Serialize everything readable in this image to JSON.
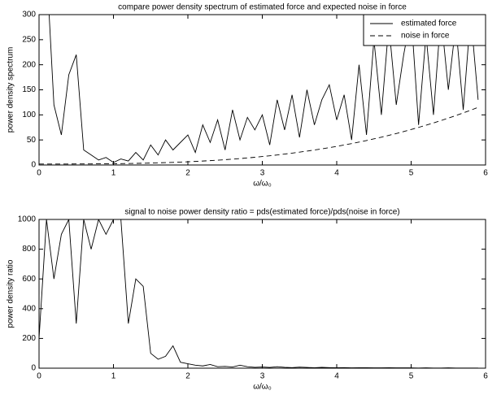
{
  "chart_data": [
    {
      "type": "line",
      "title": "compare power density spectrum of estimated force and expected noise in force",
      "xlabel": "ω/ω₀",
      "ylabel": "power density spectrum",
      "x": [
        0,
        0.1,
        0.2,
        0.3,
        0.4,
        0.5,
        0.6,
        0.7,
        0.8,
        0.9,
        1,
        1.1,
        1.2,
        1.3,
        1.4,
        1.5,
        1.6,
        1.7,
        1.8,
        1.9,
        2,
        2.1,
        2.2,
        2.3,
        2.4,
        2.5,
        2.6,
        2.7,
        2.8,
        2.9,
        3,
        3.1,
        3.2,
        3.3,
        3.4,
        3.5,
        3.6,
        3.7,
        3.8,
        3.9,
        4,
        4.1,
        4.2,
        4.3,
        4.4,
        4.5,
        4.6,
        4.7,
        4.8,
        4.9,
        5,
        5.1,
        5.2,
        5.3,
        5.4,
        5.5,
        5.6,
        5.7,
        5.8,
        5.9
      ],
      "series": [
        {
          "name": "estimated force",
          "color": "#000000",
          "dash": "solid",
          "values": [
            300,
            400,
            120,
            60,
            180,
            220,
            30,
            20,
            10,
            15,
            5,
            12,
            8,
            25,
            10,
            40,
            20,
            50,
            30,
            45,
            60,
            25,
            80,
            45,
            90,
            30,
            110,
            50,
            95,
            70,
            100,
            40,
            130,
            70,
            140,
            55,
            150,
            80,
            130,
            160,
            90,
            140,
            50,
            200,
            60,
            250,
            100,
            280,
            120,
            220,
            300,
            80,
            260,
            100,
            300,
            150,
            280,
            110,
            300,
            130
          ]
        },
        {
          "name": "noise in force",
          "color": "#000000",
          "dash": "dashed",
          "values": [
            2,
            2,
            2,
            2,
            2,
            2.1,
            2.1,
            2.2,
            2.3,
            2.4,
            2.6,
            2.7,
            3,
            3.2,
            3.5,
            3.9,
            4.3,
            4.7,
            5.2,
            5.8,
            6.4,
            7.1,
            7.9,
            8.7,
            9.6,
            10.6,
            11.7,
            12.8,
            14.1,
            15.4,
            16.9,
            18.4,
            20,
            21.8,
            23.6,
            25.6,
            27.7,
            29.9,
            32.2,
            34.6,
            37.2,
            39.9,
            42.7,
            45.7,
            48.8,
            52.1,
            55.5,
            59.1,
            62.8,
            66.7,
            70.8,
            75,
            79.3,
            83.9,
            88.6,
            93.5,
            98.6,
            103.9,
            109.3,
            115
          ]
        }
      ],
      "xlim": [
        0,
        6
      ],
      "xticks": [
        0,
        1,
        2,
        3,
        4,
        5,
        6
      ],
      "ylim": [
        0,
        300
      ],
      "yticks": [
        0,
        50,
        100,
        150,
        200,
        250,
        300
      ],
      "legend": "upper right",
      "grid": false
    },
    {
      "type": "line",
      "title": "signal to noise power density ratio = pds(estimated force)/pds(noise in force)",
      "xlabel": "ω/ω₀",
      "ylabel": "power density ratio",
      "x": [
        0,
        0.1,
        0.2,
        0.3,
        0.4,
        0.5,
        0.6,
        0.7,
        0.8,
        0.9,
        1,
        1.1,
        1.2,
        1.3,
        1.4,
        1.5,
        1.6,
        1.7,
        1.8,
        1.9,
        2,
        2.1,
        2.2,
        2.3,
        2.4,
        2.5,
        2.6,
        2.7,
        2.8,
        2.9,
        3,
        3.1,
        3.2,
        3.3,
        3.4,
        3.5,
        3.6,
        3.7,
        3.8,
        3.9,
        4,
        4.1,
        4.2,
        4.3,
        4.4,
        4.5,
        4.6,
        4.7,
        4.8,
        4.9,
        5,
        5.1,
        5.2,
        5.3,
        5.4,
        5.5,
        5.6,
        5.7,
        5.8,
        5.9
      ],
      "series": [
        {
          "color": "#000000",
          "dash": "solid",
          "values": [
            200,
            1000,
            600,
            900,
            1000,
            300,
            1000,
            800,
            1000,
            900,
            1000,
            1000,
            300,
            600,
            550,
            100,
            60,
            80,
            150,
            40,
            30,
            20,
            15,
            25,
            10,
            12,
            8,
            20,
            10,
            6,
            8,
            5,
            10,
            6,
            4,
            7,
            5,
            3,
            6,
            4,
            3,
            4,
            2,
            3,
            3,
            2,
            2,
            3,
            2,
            2,
            2,
            1,
            2,
            1,
            1,
            2,
            1,
            1,
            1,
            1
          ]
        }
      ],
      "xlim": [
        0,
        6
      ],
      "xticks": [
        0,
        1,
        2,
        3,
        4,
        5,
        6
      ],
      "ylim": [
        0,
        1000
      ],
      "yticks": [
        0,
        200,
        400,
        600,
        800,
        1000
      ],
      "grid": false
    }
  ]
}
